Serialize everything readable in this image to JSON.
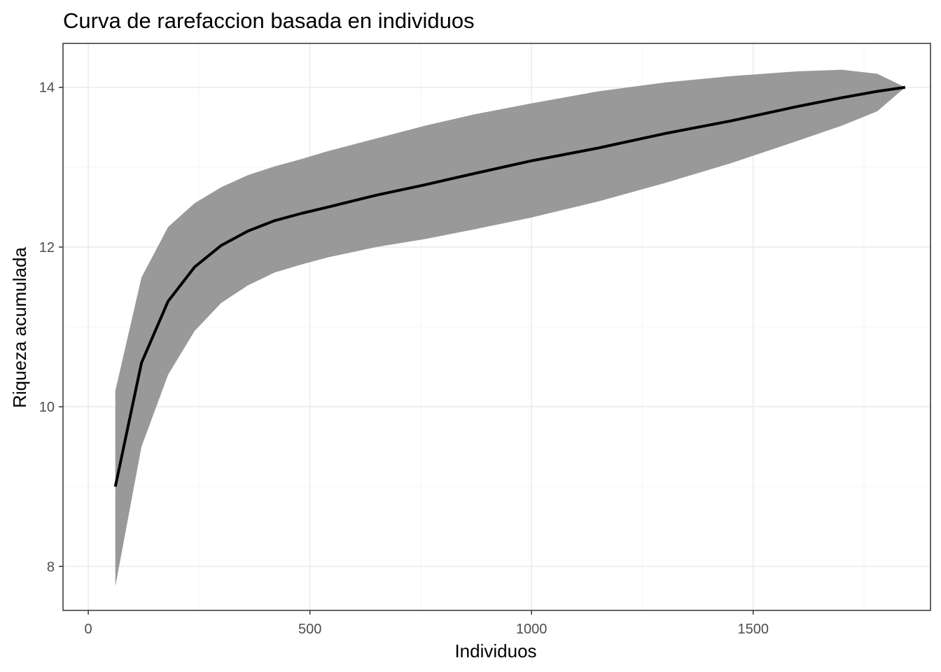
{
  "chart_data": {
    "type": "line",
    "title": "Curva de rarefaccion basada en individuos",
    "xlabel": "Individuos",
    "ylabel": "Riqueza acumulada",
    "xlim": [
      -57,
      1900
    ],
    "ylim": [
      7.45,
      14.55
    ],
    "x_ticks": [
      0,
      500,
      1000,
      1500
    ],
    "x_tick_labels": [
      "0",
      "500",
      "1000",
      "1500"
    ],
    "y_ticks": [
      8,
      10,
      12,
      14
    ],
    "y_tick_labels": [
      "8",
      "10",
      "12",
      "14"
    ],
    "x_minor_ticks": [
      250,
      750,
      1250,
      1750
    ],
    "y_minor_ticks": [
      9,
      11,
      13
    ],
    "grid": true,
    "legend": "none",
    "colors": {
      "line": "#000000",
      "ribbon": "#999999",
      "panel_border": "#333333",
      "grid_major": "#ebebeb",
      "grid_minor": "#f5f5f5"
    },
    "series": [
      {
        "x": [
          61,
          120,
          180,
          240,
          300,
          360,
          420,
          480,
          540,
          650,
          760,
          870,
          1000,
          1150,
          1300,
          1450,
          1600,
          1700,
          1780,
          1843
        ],
        "y": [
          9.0,
          10.55,
          11.32,
          11.75,
          12.02,
          12.2,
          12.33,
          12.42,
          12.5,
          12.65,
          12.78,
          12.92,
          13.08,
          13.24,
          13.42,
          13.58,
          13.76,
          13.87,
          13.95,
          14.0
        ],
        "lower": [
          7.75,
          9.5,
          10.4,
          10.95,
          11.3,
          11.52,
          11.68,
          11.78,
          11.87,
          12.0,
          12.1,
          12.22,
          12.37,
          12.57,
          12.8,
          13.05,
          13.33,
          13.52,
          13.7,
          14.0
        ],
        "upper": [
          10.2,
          11.62,
          12.25,
          12.55,
          12.75,
          12.9,
          13.01,
          13.1,
          13.2,
          13.36,
          13.52,
          13.66,
          13.8,
          13.95,
          14.06,
          14.14,
          14.2,
          14.22,
          14.17,
          14.0
        ]
      }
    ]
  }
}
